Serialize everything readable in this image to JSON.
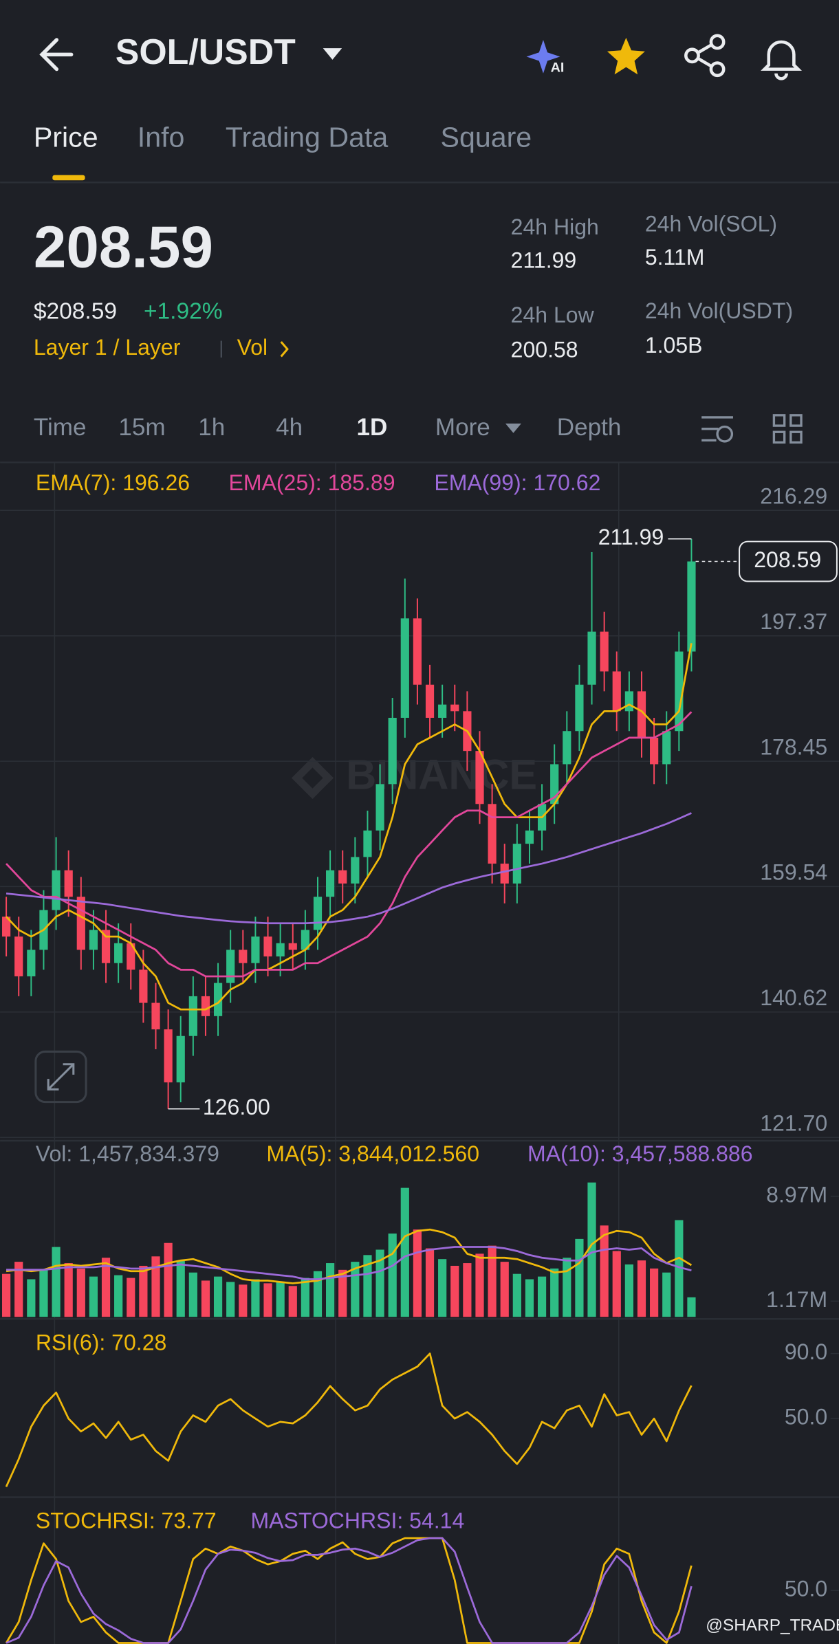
{
  "header": {
    "title": "SOL/USDT"
  },
  "tabs": [
    "Price",
    "Info",
    "Trading Data",
    "Square"
  ],
  "price": {
    "last": "208.59",
    "usd": "$208.59",
    "change": "+1.92%",
    "sector": "Layer 1 / Layer",
    "vol_link": "Vol"
  },
  "stats": [
    {
      "label": "24h High",
      "value": "211.99"
    },
    {
      "label": "24h Vol(SOL)",
      "value": "5.11M"
    },
    {
      "label": "24h Low",
      "value": "200.58"
    },
    {
      "label": "24h Vol(USDT)",
      "value": "1.05B"
    }
  ],
  "timeframes": [
    "Time",
    "15m",
    "1h",
    "4h",
    "1D",
    "More",
    "Depth"
  ],
  "watermark": "BINANCE",
  "credit": "@SHARP_TRADER",
  "chart_data": [
    {
      "type": "candlestick",
      "up_color": "#2ebd85",
      "down_color": "#f6465d",
      "grid": true,
      "open": [
        155,
        152,
        146,
        150,
        156,
        162,
        158,
        150,
        153,
        148,
        151,
        147,
        142,
        138,
        130,
        137,
        143,
        140,
        145,
        150,
        148,
        152,
        149,
        151,
        150,
        153,
        158,
        162,
        160,
        164,
        168,
        175,
        185,
        200,
        190,
        185,
        187,
        186,
        180,
        172,
        163,
        160,
        166,
        168,
        172,
        178,
        183,
        190,
        198,
        192,
        186,
        189,
        182,
        178,
        183,
        195
      ],
      "high": [
        158,
        155,
        153,
        159,
        167,
        165,
        161,
        156,
        156,
        154,
        154,
        150,
        145,
        141,
        140,
        146,
        146,
        148,
        153,
        153,
        155,
        155,
        154,
        154,
        156,
        161,
        165,
        165,
        167,
        171,
        178,
        188,
        206,
        203,
        193,
        190,
        190,
        189,
        183,
        175,
        166,
        169,
        171,
        175,
        181,
        186,
        193,
        210,
        201,
        195,
        192,
        192,
        185,
        186,
        198,
        211.99
      ],
      "low": [
        149,
        143,
        143,
        147,
        153,
        155,
        147,
        147,
        145,
        145,
        144,
        139,
        135,
        126,
        127,
        134,
        137,
        137,
        142,
        145,
        145,
        146,
        146,
        147,
        147,
        150,
        155,
        157,
        157,
        161,
        165,
        172,
        182,
        187,
        182,
        182,
        183,
        177,
        169,
        160,
        157,
        157,
        163,
        165,
        169,
        175,
        180,
        187,
        189,
        183,
        183,
        179,
        175,
        175,
        180,
        192
      ],
      "close": [
        152,
        146,
        150,
        156,
        162,
        158,
        150,
        153,
        148,
        151,
        147,
        142,
        138,
        130,
        137,
        143,
        140,
        145,
        150,
        148,
        152,
        149,
        151,
        150,
        153,
        158,
        162,
        160,
        164,
        168,
        175,
        185,
        200,
        190,
        185,
        187,
        186,
        180,
        172,
        163,
        160,
        166,
        168,
        172,
        178,
        183,
        190,
        198,
        192,
        186,
        189,
        182,
        178,
        183,
        195,
        208.59
      ],
      "low_label": "126.00",
      "series": [
        {
          "name": "EMA(7): 196.26",
          "color": "#f0b90b",
          "values": [
            155,
            153,
            152,
            153,
            155,
            156,
            155,
            154,
            152,
            152,
            151,
            148,
            146,
            142,
            141,
            141,
            141,
            142,
            144,
            145,
            147,
            147,
            148,
            149,
            150,
            152,
            155,
            156,
            158,
            161,
            164,
            170,
            178,
            181,
            182,
            183,
            184,
            183,
            180,
            176,
            172,
            170,
            170,
            170,
            172,
            175,
            179,
            184,
            186,
            186,
            187,
            186,
            184,
            184,
            186,
            196.26
          ]
        },
        {
          "name": "EMA(25): 185.89",
          "color": "#e2479b",
          "values": [
            163,
            161,
            159,
            158,
            158,
            157,
            156,
            155,
            154,
            153,
            152,
            151,
            150,
            148,
            147,
            147,
            146,
            146,
            146,
            146,
            147,
            147,
            147,
            147,
            148,
            148,
            149,
            150,
            151,
            152,
            154,
            157,
            161,
            164,
            166,
            168,
            170,
            171,
            171,
            170,
            170,
            170,
            171,
            172,
            173,
            175,
            177,
            179,
            180,
            181,
            182,
            182,
            182,
            183,
            184,
            185.89
          ]
        },
        {
          "name": "EMA(99): 170.62",
          "color": "#9c6ad9",
          "values": [
            158.5,
            158.3,
            158.1,
            157.9,
            157.7,
            157.5,
            157.3,
            157.1,
            156.9,
            156.6,
            156.3,
            156,
            155.7,
            155.4,
            155.1,
            154.9,
            154.7,
            154.5,
            154.3,
            154.2,
            154.1,
            154,
            154,
            154,
            154,
            154.1,
            154.2,
            154.4,
            154.7,
            155,
            155.5,
            156.2,
            157,
            157.8,
            158.6,
            159.4,
            160,
            160.5,
            161,
            161.4,
            161.8,
            162.2,
            162.6,
            163,
            163.5,
            164,
            164.6,
            165.2,
            165.8,
            166.4,
            167,
            167.6,
            168.3,
            169,
            169.8,
            170.62
          ]
        }
      ],
      "ylim": [
        121.2,
        222.9
      ],
      "yticks": [
        216.29,
        197.37,
        178.45,
        159.54,
        140.62,
        {
          "value": 121.7,
          "label": "121.70"
        }
      ]
    },
    {
      "type": "bar",
      "label": "Vol: 1,457,834.379",
      "values": [
        3.2,
        4.1,
        2.8,
        3.5,
        5.2,
        4.0,
        3.6,
        3.0,
        4.4,
        3.1,
        2.9,
        3.8,
        4.5,
        5.5,
        4.2,
        3.3,
        2.7,
        3.0,
        2.6,
        2.4,
        2.8,
        2.5,
        2.6,
        2.3,
        2.9,
        3.4,
        4.0,
        3.5,
        4.1,
        4.6,
        5.0,
        6.2,
        9.6,
        6.5,
        5.1,
        4.3,
        3.8,
        4.0,
        4.7,
        5.3,
        4.1,
        3.2,
        2.8,
        3.0,
        3.6,
        4.4,
        5.8,
        10.0,
        6.8,
        4.9,
        3.9,
        4.2,
        3.6,
        3.3,
        7.2,
        1.457834379
      ],
      "series": [
        {
          "name": "MA(5): 3,844,012.560",
          "color": "#f0b90b",
          "values": [
            3.4,
            3.5,
            3.4,
            3.5,
            3.8,
            3.9,
            3.8,
            3.9,
            4.0,
            3.6,
            3.4,
            3.4,
            3.7,
            4.0,
            4.2,
            4.3,
            4.0,
            3.7,
            3.2,
            2.8,
            2.7,
            2.7,
            2.6,
            2.5,
            2.6,
            2.7,
            3.0,
            3.2,
            3.6,
            3.9,
            4.2,
            4.7,
            6.0,
            6.4,
            6.5,
            6.3,
            5.9,
            4.7,
            4.4,
            4.4,
            4.4,
            4.3,
            4.0,
            3.7,
            3.3,
            3.4,
            4.0,
            5.4,
            6.1,
            6.4,
            6.3,
            5.9,
            4.7,
            4.0,
            4.4,
            3.84401256
          ]
        },
        {
          "name": "MA(10): 3,457,588.886",
          "color": "#9c6ad9",
          "values": [
            3.5,
            3.5,
            3.5,
            3.5,
            3.6,
            3.7,
            3.7,
            3.7,
            3.8,
            3.7,
            3.6,
            3.6,
            3.7,
            3.8,
            3.9,
            3.8,
            3.7,
            3.6,
            3.5,
            3.4,
            3.3,
            3.2,
            3.1,
            3.0,
            2.8,
            2.8,
            2.9,
            3.0,
            3.1,
            3.2,
            3.4,
            3.8,
            4.5,
            4.8,
            5.0,
            5.1,
            5.2,
            5.2,
            5.2,
            5.2,
            5.1,
            4.9,
            4.6,
            4.4,
            4.3,
            4.2,
            4.2,
            4.8,
            5.0,
            5.1,
            5.0,
            5.1,
            4.4,
            4.0,
            3.7,
            3.457588886
          ]
        }
      ],
      "ylim": [
        0,
        11
      ],
      "yticks": [
        {
          "value": 8.97,
          "label": "8.97M"
        },
        {
          "value": 1.17,
          "label": "1.17M"
        }
      ]
    },
    {
      "type": "line",
      "series": [
        {
          "name": "RSI(6): 70.28",
          "color": "#f0b90b",
          "values": [
            8,
            25,
            45,
            58,
            66,
            50,
            42,
            47,
            38,
            48,
            37,
            40,
            30,
            24,
            42,
            52,
            48,
            58,
            62,
            55,
            50,
            45,
            48,
            47,
            52,
            60,
            70,
            62,
            55,
            58,
            68,
            74,
            78,
            82,
            90,
            58,
            50,
            54,
            48,
            40,
            30,
            22,
            32,
            48,
            44,
            55,
            58,
            45,
            65,
            52,
            54,
            40,
            50,
            36,
            55,
            70.28
          ]
        }
      ],
      "ylim": [
        3.5,
        108.7
      ],
      "yticks": [
        {
          "value": 90,
          "label": "90.0"
        },
        {
          "value": 50,
          "label": "50.0"
        }
      ]
    },
    {
      "type": "line",
      "series": [
        {
          "name": "STOCHRSI: 73.77",
          "color": "#f0b90b",
          "values": [
            0,
            20,
            60,
            95,
            80,
            40,
            20,
            25,
            10,
            0,
            0,
            0,
            0,
            0,
            40,
            80,
            90,
            85,
            92,
            88,
            80,
            75,
            78,
            85,
            88,
            80,
            90,
            96,
            85,
            80,
            82,
            95,
            100,
            100,
            100,
            100,
            60,
            0,
            0,
            0,
            0,
            0,
            0,
            0,
            0,
            0,
            0,
            30,
            75,
            90,
            85,
            40,
            10,
            0,
            30,
            73.77
          ]
        },
        {
          "name": "MASTOCHRSI: 54.14",
          "color": "#9c6ad9",
          "values": [
            0,
            5,
            25,
            55,
            78,
            72,
            47,
            28,
            18,
            12,
            4,
            0,
            0,
            0,
            13,
            40,
            70,
            85,
            89,
            88,
            86,
            81,
            78,
            79,
            84,
            84,
            86,
            89,
            90,
            87,
            82,
            86,
            92,
            98,
            100,
            100,
            87,
            53,
            20,
            0,
            0,
            0,
            0,
            0,
            0,
            0,
            10,
            35,
            65,
            83,
            72,
            45,
            17,
            3,
            10,
            54.14
          ]
        }
      ],
      "ylim": [
        0,
        137
      ],
      "yticks": [
        {
          "value": 50,
          "label": "50.0"
        }
      ]
    }
  ]
}
